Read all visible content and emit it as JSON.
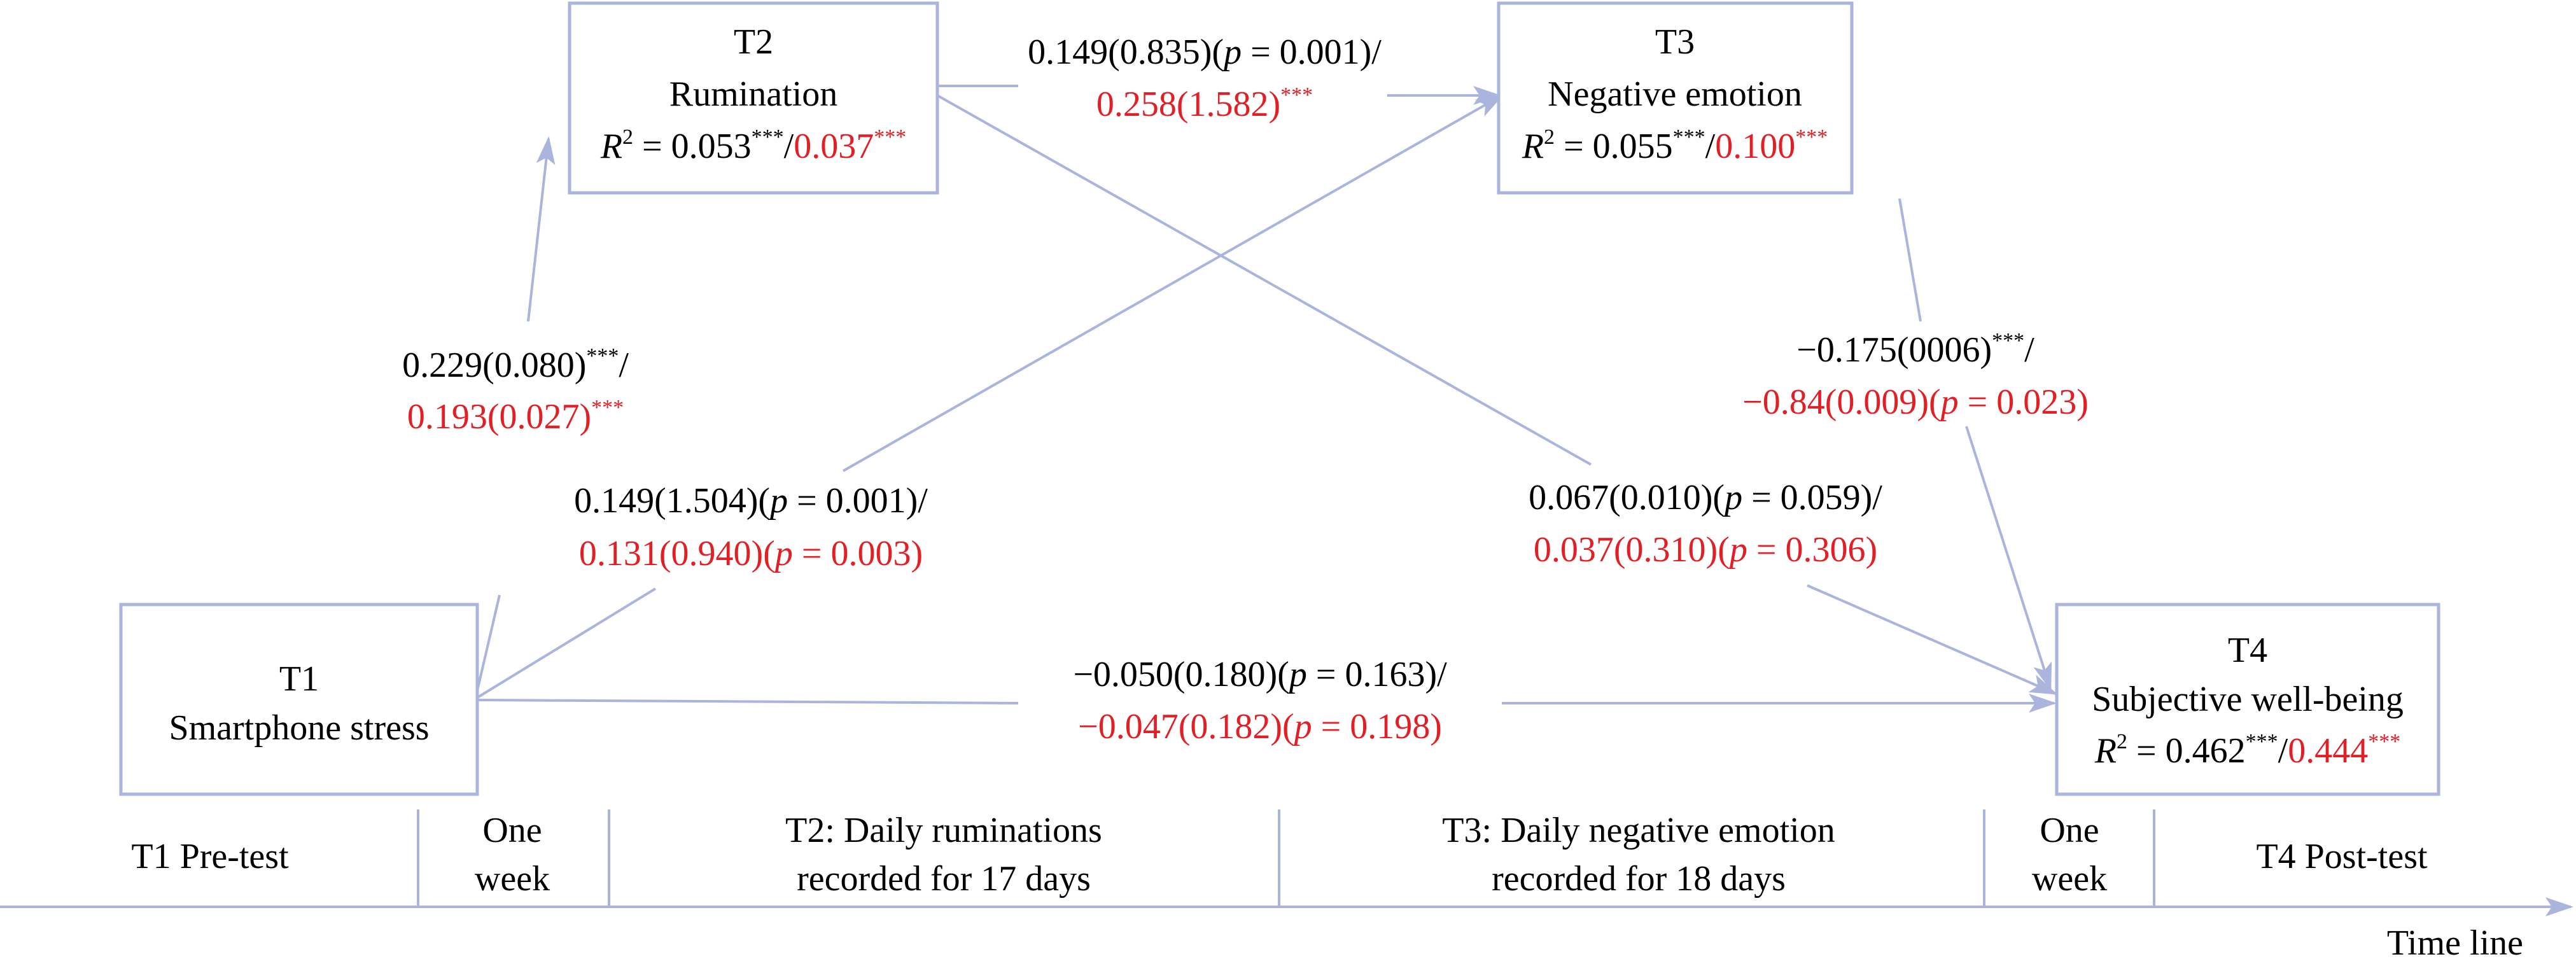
{
  "nodes": {
    "t1": {
      "code": "T1",
      "name": "Smartphone stress"
    },
    "t2": {
      "code": "T2",
      "name": "Rumination",
      "r2_label": "R",
      "r2_sup": "2",
      "r2_eq": " = 0.053",
      "r2_stars": "***",
      "r2_sep": "/",
      "r2_value_2": "0.037",
      "r2_stars_2": "***"
    },
    "t3": {
      "code": "T3",
      "name": "Negative emotion",
      "r2_label": "R",
      "r2_sup": "2",
      "r2_eq": " = 0.055",
      "r2_stars": "***",
      "r2_sep": "/",
      "r2_value_2": "0.100",
      "r2_stars_2": "***"
    },
    "t4": {
      "code": "T4",
      "name": "Subjective well-being",
      "r2_label": "R",
      "r2_sup": "2",
      "r2_eq": " = 0.462",
      "r2_stars": "***",
      "r2_sep": "/",
      "r2_value_2": "0.444",
      "r2_stars_2": "***"
    }
  },
  "paths": {
    "t1_t2": {
      "line1": "0.229(0.080)",
      "line1_stars": "***",
      "line1_sep": "/",
      "line2": "0.193(0.027)",
      "line2_stars": "***"
    },
    "t2_t3": {
      "line1_pre": "0.149(0.835)(",
      "p": "p",
      "line1_post": " = 0.001)/",
      "line2": "0.258(1.582)",
      "line2_stars": "***"
    },
    "t1_t3": {
      "line1_pre": "0.149(1.504)(",
      "p": "p",
      "line1_post": " = 0.001)/",
      "line2_pre": "0.131(0.940)(",
      "line2_post": " = 0.003)"
    },
    "t2_t4": {
      "line1_pre": "0.067(0.010)(",
      "p": "p",
      "line1_post": " = 0.059)/",
      "line2_pre": "0.037(0.310)(",
      "line2_post": " = 0.306)"
    },
    "t3_t4": {
      "line1": "−0.175(0006)",
      "line1_stars": "***",
      "line1_sep": "/",
      "line2_pre": "−0.84(0.009)(",
      "p": "p",
      "line2_post": " = 0.023)"
    },
    "t1_t4": {
      "line1_pre": "−0.050(0.180)(",
      "p": "p",
      "line1_post": " = 0.163)/",
      "line2_pre": "−0.047(0.182)(",
      "line2_post": " = 0.198)"
    }
  },
  "timeline": {
    "segments": [
      {
        "line1": "T1 Pre-test",
        "line2": ""
      },
      {
        "line1": "One",
        "line2": "week"
      },
      {
        "line1": "T2: Daily ruminations",
        "line2": "recorded for 17 days"
      },
      {
        "line1": "T3: Daily negative emotion",
        "line2": "recorded for 18 days"
      },
      {
        "line1": "One",
        "line2": "week"
      },
      {
        "line1": "T4 Post-test",
        "line2": ""
      }
    ],
    "axis_label": "Time line"
  },
  "colors": {
    "box_stroke": "#aab4dc",
    "arrow": "#aab4dc",
    "highlight": "#e31f26",
    "text": "#000000"
  }
}
